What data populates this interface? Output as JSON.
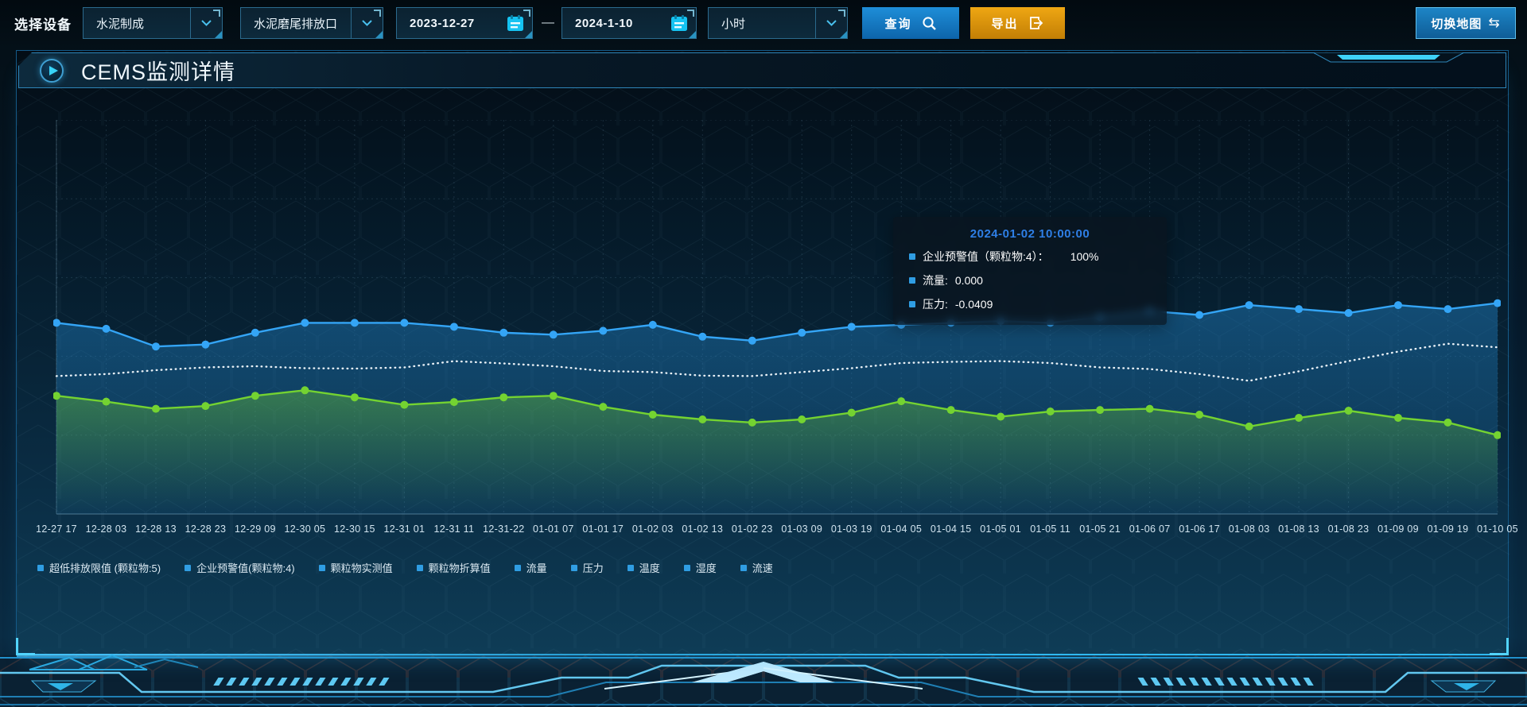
{
  "toolbar": {
    "device_label": "选择设备",
    "device_category": {
      "value": "水泥制成"
    },
    "outlet": {
      "value": "水泥磨尾排放口"
    },
    "date_from": "2023-12-27",
    "range_separator": "—",
    "date_to": "2024-1-10",
    "interval": {
      "value": "小时"
    },
    "query_label": "查询",
    "export_label": "导出",
    "switch_map_label": "切换地图",
    "switch_map_icon": "⇆",
    "accent_colors": {
      "query": "#1581c6",
      "export": "#d98f0a",
      "switch_map": "#1873b4"
    }
  },
  "panel": {
    "title": "CEMS监测详情"
  },
  "tooltip": {
    "title": "2024-01-02 10:00:00",
    "rows": [
      {
        "label": "企业预警值（颗粒物:4）：",
        "value": "100%"
      },
      {
        "label": "流量:",
        "value": "0.000"
      },
      {
        "label": "压力:",
        "value": "-0.0409"
      }
    ],
    "marker_color": "#2f9de3",
    "title_color": "#2e7fe6"
  },
  "legend": {
    "marker_color": "#2f9de3",
    "items": [
      "超低排放限值 (颗粒物:5)",
      "企业预警值(颗粒物:4)",
      "颗粒物实测值",
      "颗粒物折算值",
      "流量",
      "压力",
      "温度",
      "湿度",
      "流速"
    ]
  },
  "chart_data": {
    "type": "line",
    "title": "",
    "xlabel": "",
    "ylabel": "",
    "y_axis": {
      "visible": false,
      "note": "no y tick labels shown; values are normalized 0-100 of plot height"
    },
    "ylim": [
      0,
      100
    ],
    "grid": {
      "style": "dashed",
      "h_divisions": 5,
      "v_line_per_label": true
    },
    "legend_position": "bottom",
    "x_labels": [
      "12-27 17",
      "12-28 03",
      "12-28 13",
      "12-28 23",
      "12-29 09",
      "12-30 05",
      "12-30 15",
      "12-31 01",
      "12-31 11",
      "12-31-22",
      "01-01 07",
      "01-01 17",
      "01-02 03",
      "01-02 13",
      "01-02 23",
      "01-03 09",
      "01-03 19",
      "01-04 05",
      "01-04 15",
      "01-05 01",
      "01-05 11",
      "01-05 21",
      "01-06 07",
      "01-06 17",
      "01-08 03",
      "01-08 13",
      "01-08 23",
      "01-09 09",
      "01-09 19",
      "01-10 05"
    ],
    "series": [
      {
        "name": "企业预警值(颗粒物:4)",
        "color": "#34a5f6",
        "line_style": "solid",
        "markers": true,
        "area": true,
        "area_color": "#1e79b8",
        "area_opacity_top": 0.5,
        "area_opacity_bottom": 0.12,
        "values": [
          48.5,
          47,
          42.5,
          43,
          46,
          48.5,
          48.5,
          48.5,
          47.5,
          46,
          45.5,
          46.5,
          48,
          45,
          44,
          46,
          47.5,
          48,
          48.5,
          49,
          48.5,
          50,
          51.5,
          50.5,
          53,
          52,
          51,
          53,
          52,
          53.5
        ]
      },
      {
        "name": "流量",
        "color": "#e9f1f7",
        "line_style": "dotted",
        "markers": false,
        "area": false,
        "area_color": "",
        "area_opacity_top": 0,
        "area_opacity_bottom": 0,
        "values": [
          35,
          35.5,
          36.5,
          37.2,
          37.5,
          37,
          36.9,
          37.2,
          38.8,
          38.2,
          37.5,
          36.3,
          36,
          35.1,
          35,
          36,
          37,
          38.3,
          38.6,
          38.8,
          38.3,
          37.2,
          36.8,
          35.5,
          33.8,
          36.2,
          38.8,
          41.2,
          43.2,
          42.3
        ]
      },
      {
        "name": "压力",
        "color": "#74d331",
        "line_style": "solid",
        "markers": true,
        "area": true,
        "area_color": "#74d331",
        "area_opacity_top": 0.38,
        "area_opacity_bottom": 0,
        "values": [
          30,
          28.5,
          26.7,
          27.4,
          30,
          31.4,
          29.6,
          27.7,
          28.4,
          29.6,
          30,
          27.2,
          25.2,
          24,
          23.2,
          24,
          25.7,
          28.6,
          26.4,
          24.7,
          26,
          26.4,
          26.7,
          25.2,
          22.2,
          24.4,
          26.2,
          24.4,
          23.2,
          20
        ]
      }
    ]
  }
}
